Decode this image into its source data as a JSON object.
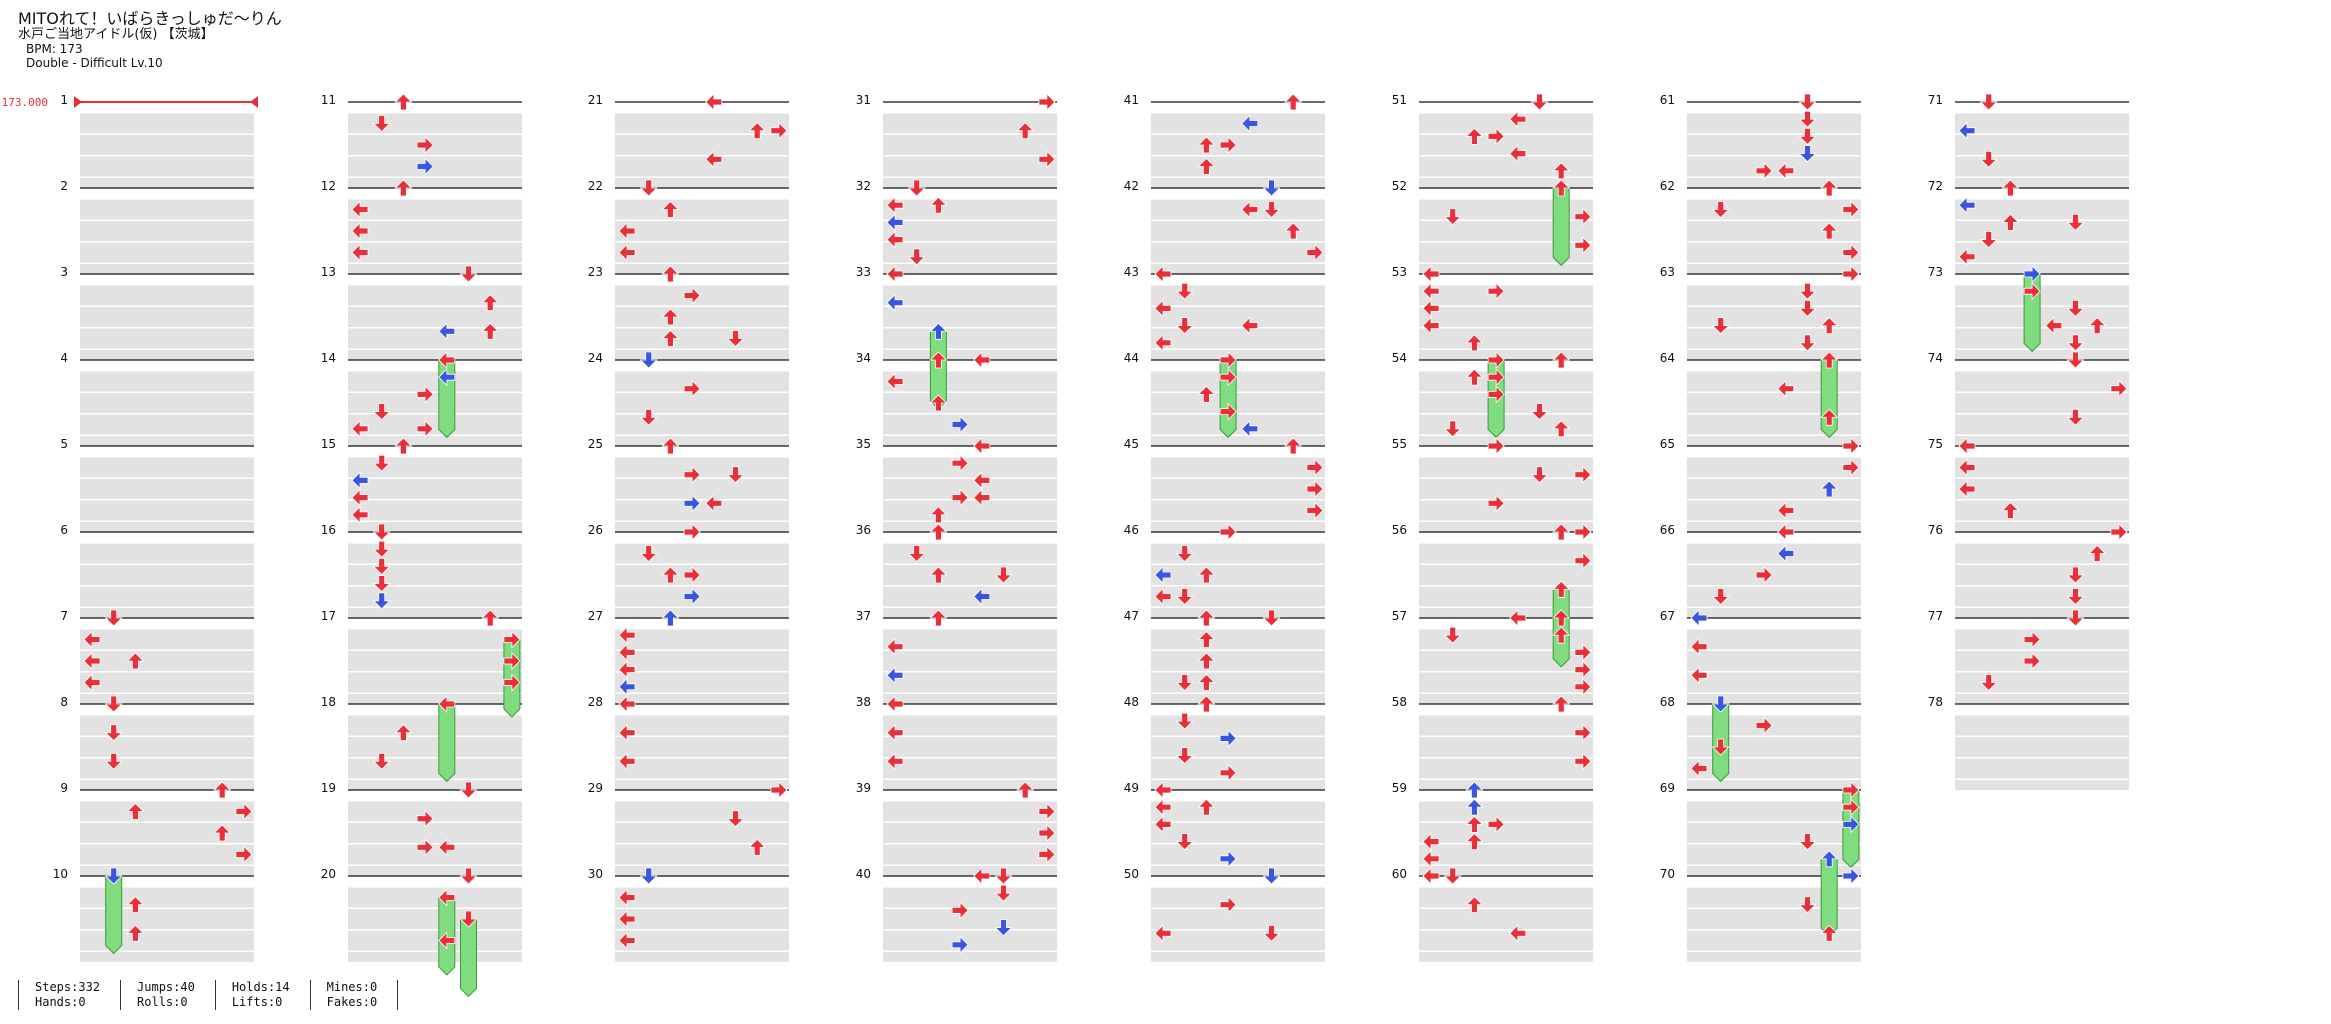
{
  "header": {
    "title": "MITOれて！いばらきっしゅだ～りん",
    "subtitle": "水戸ご当地アイドル(仮) 【茨城】",
    "bpm_label": "BPM: 173",
    "difficulty_label": "Double - Difficult  Lv.10"
  },
  "bpm_marker": {
    "label": "173.000"
  },
  "measure_numbers": [
    "1",
    "2",
    "3",
    "4",
    "5",
    "6",
    "7",
    "8",
    "9",
    "10",
    "11",
    "12",
    "13",
    "14",
    "15",
    "16",
    "17",
    "18",
    "19",
    "20",
    "21",
    "22",
    "23",
    "24",
    "25",
    "26",
    "27",
    "28",
    "29",
    "30",
    "31",
    "32",
    "33",
    "34",
    "35",
    "36",
    "37",
    "38",
    "39",
    "40",
    "41",
    "42",
    "43",
    "44",
    "45",
    "46",
    "47",
    "48",
    "49",
    "50",
    "51",
    "52",
    "53",
    "54",
    "55",
    "56",
    "57",
    "58",
    "59",
    "60",
    "61",
    "62",
    "63",
    "64",
    "65",
    "66",
    "67",
    "68",
    "69",
    "70",
    "71",
    "72",
    "73",
    "74",
    "75",
    "76",
    "77",
    "78"
  ],
  "colors": {
    "red_arrow": "#e8303a",
    "blue_arrow": "#3a55e0",
    "hold_green": "#7fdc7f",
    "lane_shade": "#e2e2e2"
  },
  "stats": {
    "steps": "Steps:332",
    "hands": "Hands:0",
    "jumps": "Jumps:40",
    "rolls": "Rolls:0",
    "holds": "Holds:14",
    "lifts": "Lifts:0",
    "mines": "Mines:0",
    "fakes": "Fakes:0"
  }
}
